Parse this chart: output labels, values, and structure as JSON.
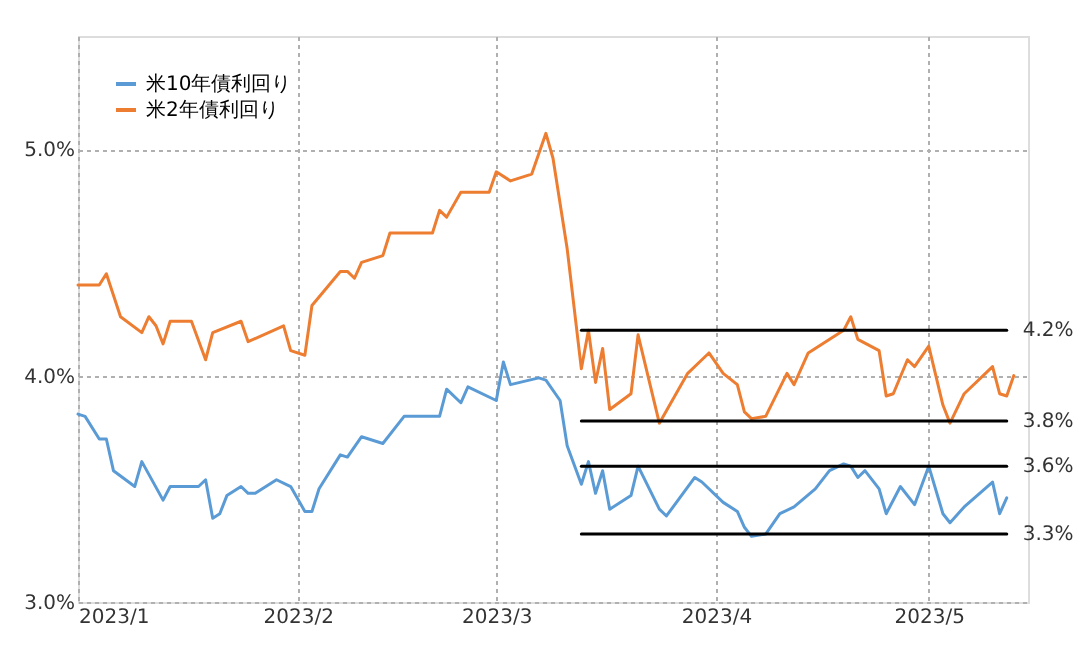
{
  "chart_data": {
    "type": "line",
    "series": [
      {
        "name": "米10年債利回り",
        "color": "#5b9bd5",
        "x": [
          "2023-01-01",
          "2023-01-02",
          "2023-01-04",
          "2023-01-05",
          "2023-01-06",
          "2023-01-09",
          "2023-01-10",
          "2023-01-13",
          "2023-01-14",
          "2023-01-18",
          "2023-01-19",
          "2023-01-20",
          "2023-01-21",
          "2023-01-22",
          "2023-01-24",
          "2023-01-25",
          "2023-01-26",
          "2023-01-29",
          "2023-01-31",
          "2023-02-02",
          "2023-02-03",
          "2023-02-04",
          "2023-02-07",
          "2023-02-08",
          "2023-02-10",
          "2023-02-13",
          "2023-02-16",
          "2023-02-21",
          "2023-02-22",
          "2023-02-24",
          "2023-02-25",
          "2023-03-01",
          "2023-03-02",
          "2023-03-03",
          "2023-03-07",
          "2023-03-08",
          "2023-03-10",
          "2023-03-11",
          "2023-03-13",
          "2023-03-14",
          "2023-03-15",
          "2023-03-16",
          "2023-03-17",
          "2023-03-20",
          "2023-03-21",
          "2023-03-24",
          "2023-03-25",
          "2023-03-29",
          "2023-03-30",
          "2023-04-02",
          "2023-04-04",
          "2023-04-05",
          "2023-04-06",
          "2023-04-08",
          "2023-04-10",
          "2023-04-12",
          "2023-04-15",
          "2023-04-17",
          "2023-04-19",
          "2023-04-20",
          "2023-04-21",
          "2023-04-22",
          "2023-04-24",
          "2023-04-25",
          "2023-04-27",
          "2023-04-29",
          "2023-05-01",
          "2023-05-03",
          "2023-05-04",
          "2023-05-06",
          "2023-05-10",
          "2023-05-11",
          "2023-05-12"
        ],
        "values": [
          3.83,
          3.82,
          3.72,
          3.72,
          3.58,
          3.51,
          3.62,
          3.45,
          3.51,
          3.51,
          3.54,
          3.37,
          3.39,
          3.47,
          3.51,
          3.48,
          3.48,
          3.54,
          3.51,
          3.4,
          3.4,
          3.5,
          3.65,
          3.64,
          3.73,
          3.7,
          3.82,
          3.82,
          3.94,
          3.88,
          3.95,
          3.89,
          4.06,
          3.96,
          3.99,
          3.98,
          3.89,
          3.69,
          3.52,
          3.62,
          3.48,
          3.58,
          3.41,
          3.47,
          3.6,
          3.41,
          3.38,
          3.55,
          3.53,
          3.44,
          3.4,
          3.33,
          3.29,
          3.3,
          3.39,
          3.42,
          3.5,
          3.58,
          3.61,
          3.6,
          3.55,
          3.58,
          3.5,
          3.39,
          3.51,
          3.43,
          3.6,
          3.39,
          3.35,
          3.42,
          3.53,
          3.39,
          3.46
        ]
      },
      {
        "name": "米2年債利回り",
        "color": "#ed7d31",
        "x": [
          "2023-01-01",
          "2023-01-04",
          "2023-01-05",
          "2023-01-07",
          "2023-01-10",
          "2023-01-11",
          "2023-01-12",
          "2023-01-13",
          "2023-01-14",
          "2023-01-17",
          "2023-01-19",
          "2023-01-20",
          "2023-01-24",
          "2023-01-25",
          "2023-01-30",
          "2023-01-31",
          "2023-02-02",
          "2023-02-03",
          "2023-02-07",
          "2023-02-08",
          "2023-02-09",
          "2023-02-10",
          "2023-02-13",
          "2023-02-14",
          "2023-02-20",
          "2023-02-21",
          "2023-02-22",
          "2023-02-24",
          "2023-02-28",
          "2023-03-01",
          "2023-03-03",
          "2023-03-06",
          "2023-03-08",
          "2023-03-09",
          "2023-03-11",
          "2023-03-13",
          "2023-03-14",
          "2023-03-15",
          "2023-03-16",
          "2023-03-17",
          "2023-03-20",
          "2023-03-21",
          "2023-03-24",
          "2023-03-28",
          "2023-03-30",
          "2023-03-31",
          "2023-04-02",
          "2023-04-04",
          "2023-04-05",
          "2023-04-06",
          "2023-04-08",
          "2023-04-11",
          "2023-04-12",
          "2023-04-14",
          "2023-04-19",
          "2023-04-20",
          "2023-04-21",
          "2023-04-24",
          "2023-04-25",
          "2023-04-26",
          "2023-04-28",
          "2023-04-29",
          "2023-05-01",
          "2023-05-03",
          "2023-05-04",
          "2023-05-06",
          "2023-05-10",
          "2023-05-11",
          "2023-05-12",
          "2023-05-13"
        ],
        "values": [
          4.4,
          4.4,
          4.45,
          4.26,
          4.19,
          4.26,
          4.22,
          4.14,
          4.24,
          4.24,
          4.07,
          4.19,
          4.24,
          4.15,
          4.22,
          4.11,
          4.09,
          4.31,
          4.46,
          4.46,
          4.43,
          4.5,
          4.53,
          4.63,
          4.63,
          4.73,
          4.7,
          4.81,
          4.81,
          4.9,
          4.86,
          4.89,
          5.07,
          4.96,
          4.56,
          4.03,
          4.2,
          3.97,
          4.12,
          3.85,
          3.92,
          4.18,
          3.79,
          4.01,
          4.07,
          4.1,
          4.01,
          3.96,
          3.84,
          3.81,
          3.82,
          4.01,
          3.96,
          4.1,
          4.2,
          4.26,
          4.16,
          4.11,
          3.91,
          3.92,
          4.07,
          4.04,
          4.13,
          3.87,
          3.79,
          3.92,
          4.04,
          3.92,
          3.91,
          4.0
        ]
      },
      {
        "color": "#000000",
        "x": [
          "2023-03-13",
          "2023-05-12"
        ],
        "values": [
          4.2,
          4.2
        ]
      },
      {
        "color": "#000000",
        "x": [
          "2023-03-13",
          "2023-05-12"
        ],
        "values": [
          3.8,
          3.8
        ]
      },
      {
        "color": "#000000",
        "x": [
          "2023-03-13",
          "2023-05-12"
        ],
        "values": [
          3.6,
          3.6
        ]
      },
      {
        "color": "#000000",
        "x": [
          "2023-03-13",
          "2023-05-12"
        ],
        "values": [
          3.3,
          3.3
        ]
      }
    ],
    "annotations": [
      {
        "text": "4.2%",
        "x": "2023-05-12",
        "y": 4.2
      },
      {
        "text": "3.8%",
        "x": "2023-05-12",
        "y": 3.8
      },
      {
        "text": "3.6%",
        "x": "2023-05-12",
        "y": 3.6
      },
      {
        "text": "3.3%",
        "x": "2023-05-12",
        "y": 3.3
      }
    ],
    "xlim": [
      "2023-01-01",
      "2023-05-15"
    ],
    "xticks": [
      {
        "value": "2023-01-01",
        "label": "2023/1"
      },
      {
        "value": "2023-02-01",
        "label": "2023/2"
      },
      {
        "value": "2023-03-01",
        "label": "2023/3"
      },
      {
        "value": "2023-04-01",
        "label": "2023/4"
      },
      {
        "value": "2023-05-01",
        "label": "2023/5"
      }
    ],
    "ylim": [
      3.0,
      5.5
    ],
    "yticks": [
      {
        "value": 3.0,
        "label": "3.0%"
      },
      {
        "value": 4.0,
        "label": "4.0%"
      },
      {
        "value": 5.0,
        "label": "5.0%"
      }
    ],
    "grid": true,
    "legend": "top left"
  }
}
